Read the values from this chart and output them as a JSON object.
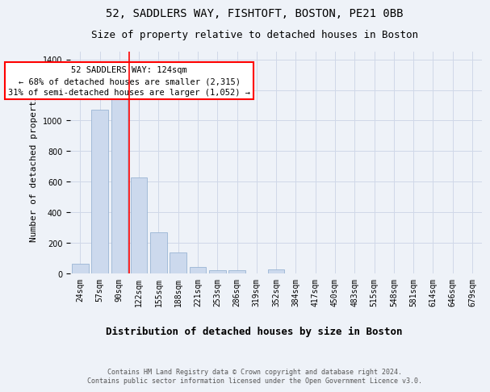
{
  "title1": "52, SADDLERS WAY, FISHTOFT, BOSTON, PE21 0BB",
  "title2": "Size of property relative to detached houses in Boston",
  "xlabel": "Distribution of detached houses by size in Boston",
  "ylabel": "Number of detached properties",
  "categories": [
    "24sqm",
    "57sqm",
    "90sqm",
    "122sqm",
    "155sqm",
    "188sqm",
    "221sqm",
    "253sqm",
    "286sqm",
    "319sqm",
    "352sqm",
    "384sqm",
    "417sqm",
    "450sqm",
    "483sqm",
    "515sqm",
    "548sqm",
    "581sqm",
    "614sqm",
    "646sqm",
    "679sqm"
  ],
  "values": [
    65,
    1070,
    1160,
    630,
    270,
    135,
    45,
    20,
    20,
    0,
    25,
    0,
    0,
    0,
    0,
    0,
    0,
    0,
    0,
    0,
    0
  ],
  "bar_color": "#ccd9ed",
  "bar_edge_color": "#9ab4d4",
  "red_line_x": 2.5,
  "annotation_text": "52 SADDLERS WAY: 124sqm\n← 68% of detached houses are smaller (2,315)\n31% of semi-detached houses are larger (1,052) →",
  "footer": "Contains HM Land Registry data © Crown copyright and database right 2024.\nContains public sector information licensed under the Open Government Licence v3.0.",
  "ylim": [
    0,
    1450
  ],
  "background_color": "#eef2f8",
  "grid_color": "#d0d8e8",
  "title1_fontsize": 10,
  "title2_fontsize": 9,
  "xlabel_fontsize": 9,
  "ylabel_fontsize": 8,
  "tick_fontsize": 7,
  "footer_fontsize": 6,
  "annotation_fontsize": 7.5
}
